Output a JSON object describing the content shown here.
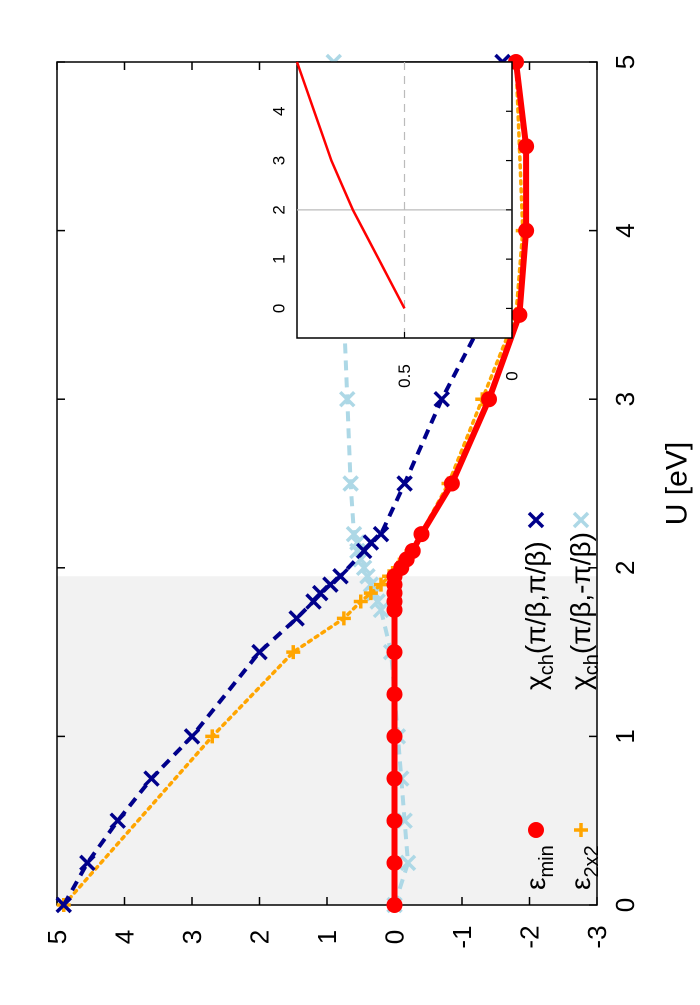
{
  "chart_data": [
    {
      "type": "line",
      "title": "",
      "xlabel": "U [eV]",
      "ylabel": "",
      "xlim": [
        0,
        5
      ],
      "ylim": [
        -3,
        5
      ],
      "xticks": [
        "0",
        "1",
        "2",
        "3",
        "4",
        "5"
      ],
      "yticks": [
        "-3",
        "-2",
        "-1",
        "0",
        "1",
        "2",
        "3",
        "4",
        "5"
      ],
      "orientation": "rotated 90° counter-clockwise",
      "grid": false,
      "legend_position": "bottom-left",
      "shaded_region": {
        "x": [
          0,
          1.95
        ],
        "y": [
          -3,
          5
        ],
        "color": "#f2f2f2"
      },
      "series": [
        {
          "name": "ε_min",
          "label_main": "ε",
          "label_sub": "min",
          "color": "#ff0000",
          "marker": "circle",
          "line": "solid",
          "points": [
            [
              0,
              0
            ],
            [
              0.25,
              0
            ],
            [
              0.5,
              0
            ],
            [
              0.75,
              0
            ],
            [
              1.0,
              0
            ],
            [
              1.25,
              0
            ],
            [
              1.5,
              0
            ],
            [
              1.75,
              0
            ],
            [
              1.8,
              0
            ],
            [
              1.85,
              0
            ],
            [
              1.9,
              0
            ],
            [
              1.95,
              0
            ],
            [
              2.0,
              -0.1
            ],
            [
              2.05,
              -0.18
            ],
            [
              2.1,
              -0.27
            ],
            [
              2.2,
              -0.4
            ],
            [
              2.5,
              -0.85
            ],
            [
              3.0,
              -1.4
            ],
            [
              3.5,
              -1.85
            ],
            [
              4.0,
              -1.95
            ],
            [
              4.5,
              -1.95
            ],
            [
              5.0,
              -1.8
            ]
          ]
        },
        {
          "name": "ε_2x2",
          "label_main": "ε",
          "label_sub": "2x2",
          "color": "#ffa500",
          "marker": "plus",
          "line": "dotted",
          "points": [
            [
              0,
              4.9
            ],
            [
              1.0,
              2.7
            ],
            [
              1.5,
              1.5
            ],
            [
              1.7,
              0.75
            ],
            [
              1.8,
              0.5
            ],
            [
              1.85,
              0.35
            ],
            [
              1.9,
              0.2
            ],
            [
              1.95,
              0.08
            ],
            [
              2.0,
              -0.05
            ],
            [
              2.05,
              -0.15
            ],
            [
              2.1,
              -0.25
            ],
            [
              2.5,
              -0.8
            ],
            [
              3.0,
              -1.3
            ],
            [
              3.5,
              -1.8
            ],
            [
              4.0,
              -1.9
            ],
            [
              5.0,
              -1.8
            ]
          ]
        },
        {
          "name": "χch(π/β,π/β)",
          "label_main": "χ",
          "label_sub": "ch",
          "label_rest": "(π/β,π/β)",
          "color": "#00008b",
          "marker": "x",
          "line": "dashed",
          "points": [
            [
              0,
              4.9
            ],
            [
              0.25,
              4.55
            ],
            [
              0.5,
              4.1
            ],
            [
              0.75,
              3.6
            ],
            [
              1.0,
              3.0
            ],
            [
              1.5,
              2.0
            ],
            [
              1.7,
              1.45
            ],
            [
              1.8,
              1.2
            ],
            [
              1.85,
              1.1
            ],
            [
              1.9,
              0.95
            ],
            [
              1.95,
              0.8
            ],
            [
              2.1,
              0.45
            ],
            [
              2.15,
              0.35
            ],
            [
              2.2,
              0.2
            ],
            [
              2.5,
              -0.15
            ],
            [
              3.0,
              -0.7
            ],
            [
              3.5,
              -1.35
            ],
            [
              4.0,
              -1.5
            ],
            [
              4.5,
              -1.6
            ],
            [
              5.0,
              -1.6
            ]
          ]
        },
        {
          "name": "χch(π/β,-π/β)",
          "label_main": "χ",
          "label_sub": "ch",
          "label_rest": "(π/β,-π/β)",
          "color": "#add8e6",
          "marker": "x",
          "line": "dashed",
          "points": [
            [
              0,
              0
            ],
            [
              0.25,
              -0.2
            ],
            [
              0.5,
              -0.15
            ],
            [
              0.75,
              -0.1
            ],
            [
              1.0,
              -0.05
            ],
            [
              1.5,
              0.05
            ],
            [
              1.75,
              0.2
            ],
            [
              1.8,
              0.25
            ],
            [
              1.85,
              0.3
            ],
            [
              1.9,
              0.35
            ],
            [
              1.95,
              0.4
            ],
            [
              2.0,
              0.45
            ],
            [
              2.05,
              0.5
            ],
            [
              2.1,
              0.55
            ],
            [
              2.15,
              0.55
            ],
            [
              2.2,
              0.6
            ],
            [
              2.5,
              0.65
            ],
            [
              3.0,
              0.7
            ],
            [
              3.5,
              0.75
            ],
            [
              4.0,
              0.8
            ],
            [
              4.5,
              0.85
            ],
            [
              5.0,
              0.9
            ]
          ]
        }
      ]
    },
    {
      "type": "line",
      "title": "",
      "role": "inset",
      "position": "top-right",
      "xlim": [
        -0.6,
        5
      ],
      "ylim": [
        0,
        1
      ],
      "xticks": [
        "0",
        "1",
        "2",
        "3",
        "4"
      ],
      "yticks": [
        "0",
        "0.5"
      ],
      "reference_lines": {
        "horizontal": 0.5,
        "vertical": 2.0
      },
      "series": [
        {
          "name": "inset curve",
          "color": "#ff0000",
          "line": "solid",
          "points": [
            [
              0,
              0.5
            ],
            [
              0.5,
              0.56
            ],
            [
              1.0,
              0.62
            ],
            [
              1.5,
              0.68
            ],
            [
              2.0,
              0.74
            ],
            [
              2.5,
              0.79
            ],
            [
              3.0,
              0.84
            ],
            [
              3.5,
              0.88
            ],
            [
              4.0,
              0.92
            ],
            [
              4.5,
              0.96
            ],
            [
              5.0,
              1.0
            ]
          ]
        }
      ]
    }
  ]
}
